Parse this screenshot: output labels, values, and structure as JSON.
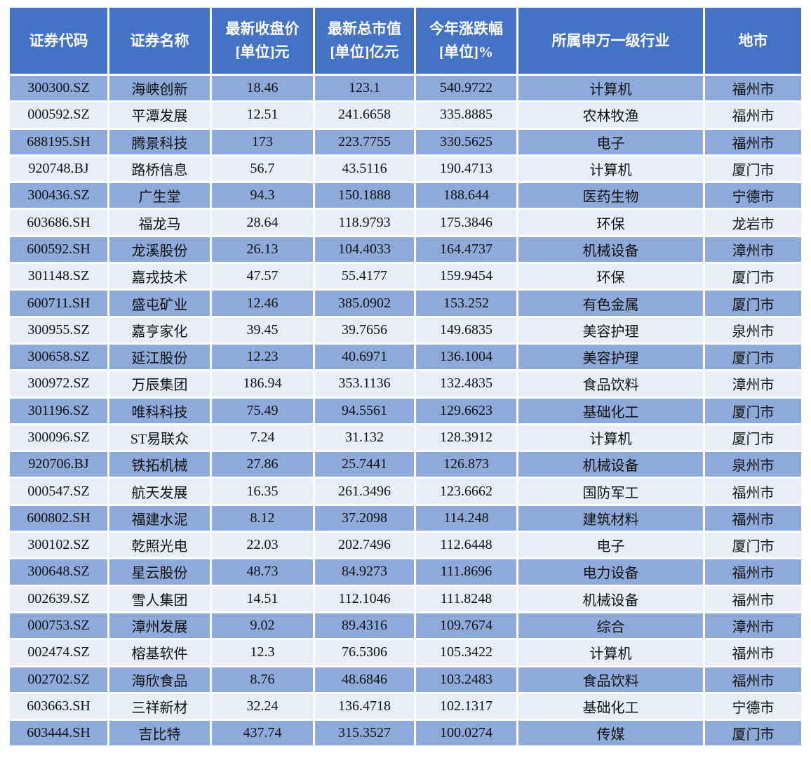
{
  "styles": {
    "header_bg": "#4472C4",
    "row_dark_bg": "#8EAADB",
    "row_light_bg": "#E9EDF7",
    "cell_text": "#111111"
  },
  "chart_data": {
    "type": "table",
    "columns": [
      "证券代码",
      "证券名称",
      "最新收盘价\n[单位]元",
      "最新总市值\n[单位]亿元",
      "今年涨跌幅\n[单位]%",
      "所属申万一级行业",
      "地市"
    ],
    "column_keys": [
      "code",
      "name",
      "close_price",
      "market_cap",
      "ytd_change",
      "industry",
      "city"
    ],
    "rows": [
      [
        "300300.SZ",
        "海峡创新",
        "18.46",
        "123.1",
        "540.9722",
        "计算机",
        "福州市"
      ],
      [
        "000592.SZ",
        "平潭发展",
        "12.51",
        "241.6658",
        "335.8885",
        "农林牧渔",
        "福州市"
      ],
      [
        "688195.SH",
        "腾景科技",
        "173",
        "223.7755",
        "330.5625",
        "电子",
        "福州市"
      ],
      [
        "920748.BJ",
        "路桥信息",
        "56.7",
        "43.5116",
        "190.4713",
        "计算机",
        "厦门市"
      ],
      [
        "300436.SZ",
        "广生堂",
        "94.3",
        "150.1888",
        "188.644",
        "医药生物",
        "宁德市"
      ],
      [
        "603686.SH",
        "福龙马",
        "28.64",
        "118.9793",
        "175.3846",
        "环保",
        "龙岩市"
      ],
      [
        "600592.SH",
        "龙溪股份",
        "26.13",
        "104.4033",
        "164.4737",
        "机械设备",
        "漳州市"
      ],
      [
        "301148.SZ",
        "嘉戎技术",
        "47.57",
        "55.4177",
        "159.9454",
        "环保",
        "厦门市"
      ],
      [
        "600711.SH",
        "盛屯矿业",
        "12.46",
        "385.0902",
        "153.252",
        "有色金属",
        "厦门市"
      ],
      [
        "300955.SZ",
        "嘉亨家化",
        "39.45",
        "39.7656",
        "149.6835",
        "美容护理",
        "泉州市"
      ],
      [
        "300658.SZ",
        "延江股份",
        "12.23",
        "40.6971",
        "136.1004",
        "美容护理",
        "厦门市"
      ],
      [
        "300972.SZ",
        "万辰集团",
        "186.94",
        "353.1136",
        "132.4835",
        "食品饮料",
        "漳州市"
      ],
      [
        "301196.SZ",
        "唯科科技",
        "75.49",
        "94.5561",
        "129.6623",
        "基础化工",
        "厦门市"
      ],
      [
        "300096.SZ",
        "ST易联众",
        "7.24",
        "31.132",
        "128.3912",
        "计算机",
        "厦门市"
      ],
      [
        "920706.BJ",
        "铁拓机械",
        "27.86",
        "25.7441",
        "126.873",
        "机械设备",
        "泉州市"
      ],
      [
        "000547.SZ",
        "航天发展",
        "16.35",
        "261.3496",
        "123.6662",
        "国防军工",
        "福州市"
      ],
      [
        "600802.SH",
        "福建水泥",
        "8.12",
        "37.2098",
        "114.248",
        "建筑材料",
        "福州市"
      ],
      [
        "300102.SZ",
        "乾照光电",
        "22.03",
        "202.7496",
        "112.6448",
        "电子",
        "厦门市"
      ],
      [
        "300648.SZ",
        "星云股份",
        "48.73",
        "84.9273",
        "111.8696",
        "电力设备",
        "福州市"
      ],
      [
        "002639.SZ",
        "雪人集团",
        "14.51",
        "112.1046",
        "111.8248",
        "机械设备",
        "福州市"
      ],
      [
        "000753.SZ",
        "漳州发展",
        "9.02",
        "89.4316",
        "109.7674",
        "综合",
        "漳州市"
      ],
      [
        "002474.SZ",
        "榕基软件",
        "12.3",
        "76.5306",
        "105.3422",
        "计算机",
        "福州市"
      ],
      [
        "002702.SZ",
        "海欣食品",
        "8.76",
        "48.6846",
        "103.2483",
        "食品饮料",
        "福州市"
      ],
      [
        "603663.SH",
        "三祥新材",
        "32.24",
        "136.4718",
        "102.1317",
        "基础化工",
        "宁德市"
      ],
      [
        "603444.SH",
        "吉比特",
        "437.74",
        "315.3527",
        "100.0274",
        "传媒",
        "厦门市"
      ]
    ]
  }
}
